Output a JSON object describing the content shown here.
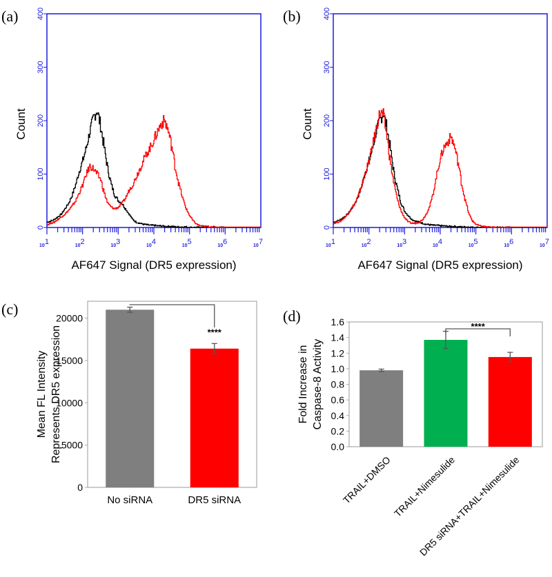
{
  "colors": {
    "axis_blue": "#1a1adb",
    "black": "#000000",
    "red": "#ff0000",
    "gray": "#7f7f7f",
    "green": "#00b050",
    "frame": "#aaaaaa"
  },
  "chart_data": [
    {
      "panel": "(a)",
      "type": "line",
      "xlabel": "AF647 Signal (DR5 expression)",
      "ylabel": "Count",
      "xscale": "log",
      "xlim_log10": [
        1,
        7
      ],
      "ylim": [
        0,
        400
      ],
      "y_ticks": [
        "0",
        "100",
        "200",
        "300",
        "400"
      ],
      "x_ticks": [
        {
          "base": "10",
          "exp": "1"
        },
        {
          "base": "10",
          "exp": "2"
        },
        {
          "base": "10",
          "exp": "3"
        },
        {
          "base": "10",
          "exp": "4"
        },
        {
          "base": "10",
          "exp": "5"
        },
        {
          "base": "10",
          "exp": "6"
        },
        {
          "base": "10",
          "exp": "7"
        }
      ],
      "x_log10": [
        1.0,
        1.1,
        1.2,
        1.3,
        1.4,
        1.5,
        1.6,
        1.7,
        1.8,
        1.9,
        2.0,
        2.1,
        2.2,
        2.3,
        2.4,
        2.5,
        2.6,
        2.7,
        2.8,
        2.9,
        3.0,
        3.1,
        3.2,
        3.3,
        3.4,
        3.5,
        3.6,
        3.7,
        3.8,
        3.9,
        4.0,
        4.1,
        4.2,
        4.3,
        4.4,
        4.5,
        4.6,
        4.7,
        4.8,
        4.9,
        5.0,
        5.1,
        5.2,
        5.3,
        5.4,
        5.5,
        5.6,
        5.7,
        5.8,
        5.9,
        6.0
      ],
      "series": [
        {
          "name": "black",
          "color": "#000000",
          "values": [
            10,
            12,
            15,
            20,
            25,
            35,
            45,
            60,
            80,
            105,
            125,
            150,
            180,
            205,
            220,
            190,
            150,
            110,
            80,
            60,
            50,
            45,
            35,
            25,
            15,
            10,
            8,
            6,
            5,
            4,
            4,
            3,
            3,
            2,
            2,
            2,
            1,
            1,
            1,
            1,
            0,
            0,
            0,
            0,
            0,
            0,
            0,
            0,
            0,
            0,
            0
          ]
        },
        {
          "name": "red",
          "color": "#ff0000",
          "values": [
            5,
            8,
            10,
            15,
            20,
            25,
            32,
            40,
            50,
            65,
            80,
            100,
            115,
            110,
            100,
            90,
            65,
            45,
            38,
            35,
            38,
            45,
            55,
            70,
            80,
            95,
            110,
            125,
            140,
            150,
            165,
            180,
            195,
            200,
            180,
            150,
            110,
            80,
            55,
            35,
            22,
            12,
            6,
            3,
            2,
            2,
            1,
            1,
            0,
            0,
            0
          ]
        }
      ]
    },
    {
      "panel": "(b)",
      "type": "line",
      "xlabel": "AF647 Signal (DR5 expression)",
      "ylabel": "Count",
      "xscale": "log",
      "xlim_log10": [
        1,
        7
      ],
      "ylim": [
        0,
        400
      ],
      "y_ticks": [
        "0",
        "100",
        "200",
        "300",
        "400"
      ],
      "x_ticks": [
        {
          "base": "10",
          "exp": "1"
        },
        {
          "base": "10",
          "exp": "2"
        },
        {
          "base": "10",
          "exp": "3"
        },
        {
          "base": "10",
          "exp": "4"
        },
        {
          "base": "10",
          "exp": "5"
        },
        {
          "base": "10",
          "exp": "6"
        },
        {
          "base": "10",
          "exp": "7"
        }
      ],
      "x_log10": [
        1.0,
        1.1,
        1.2,
        1.3,
        1.4,
        1.5,
        1.6,
        1.7,
        1.8,
        1.9,
        2.0,
        2.1,
        2.2,
        2.3,
        2.4,
        2.5,
        2.6,
        2.7,
        2.8,
        2.9,
        3.0,
        3.1,
        3.2,
        3.3,
        3.4,
        3.5,
        3.6,
        3.7,
        3.8,
        3.9,
        4.0,
        4.1,
        4.2,
        4.3,
        4.4,
        4.5,
        4.6,
        4.7,
        4.8,
        4.9,
        5.0,
        5.1,
        5.2,
        5.3,
        5.4,
        5.5,
        5.6,
        5.7,
        5.8,
        5.9,
        6.0
      ],
      "series": [
        {
          "name": "black",
          "color": "#000000",
          "values": [
            10,
            12,
            15,
            20,
            25,
            35,
            45,
            60,
            80,
            105,
            125,
            150,
            180,
            200,
            215,
            185,
            145,
            100,
            70,
            45,
            30,
            22,
            15,
            12,
            10,
            8,
            6,
            5,
            4,
            4,
            3,
            3,
            2,
            2,
            2,
            1,
            1,
            1,
            1,
            0,
            0,
            0,
            0,
            0,
            0,
            0,
            0,
            0,
            0,
            0,
            0
          ]
        },
        {
          "name": "red",
          "color": "#ff0000",
          "values": [
            8,
            10,
            12,
            18,
            25,
            35,
            45,
            60,
            80,
            105,
            125,
            155,
            185,
            215,
            210,
            170,
            120,
            80,
            50,
            30,
            18,
            10,
            8,
            8,
            10,
            15,
            25,
            40,
            65,
            100,
            130,
            150,
            160,
            170,
            150,
            120,
            80,
            50,
            25,
            12,
            6,
            3,
            2,
            1,
            0,
            0,
            0,
            0,
            0,
            0,
            0
          ]
        }
      ]
    },
    {
      "panel": "(c)",
      "type": "bar",
      "categories": [
        "No siRNA",
        "DR5 siRNA"
      ],
      "values": [
        21000,
        16400
      ],
      "errors": [
        300,
        600
      ],
      "bar_colors": [
        "#7f7f7f",
        "#ff0000"
      ],
      "ylabel_lines": [
        "Mean FL Intensity",
        "Represents DR5 expression"
      ],
      "ylim": [
        0,
        22000
      ],
      "y_ticks": [
        0,
        5000,
        10000,
        15000,
        20000
      ],
      "significance": "****"
    },
    {
      "panel": "(d)",
      "type": "bar",
      "categories": [
        "TRAIL+DMSO",
        "TRAIL+Nimesulide",
        "DR5 siRNA+TRAIL+Nimesulide"
      ],
      "values": [
        0.98,
        1.37,
        1.15
      ],
      "errors": [
        0.015,
        0.11,
        0.06
      ],
      "bar_colors": [
        "#7f7f7f",
        "#00b050",
        "#ff0000"
      ],
      "ylabel_lines": [
        "Fold Increase in",
        "Caspase-8 Activity"
      ],
      "ylim": [
        0,
        1.6
      ],
      "y_ticks": [
        "0.0",
        "0.2",
        "0.4",
        "0.6",
        "0.8",
        "1.0",
        "1.2",
        "1.4",
        "1.6"
      ],
      "significance": "****"
    }
  ]
}
